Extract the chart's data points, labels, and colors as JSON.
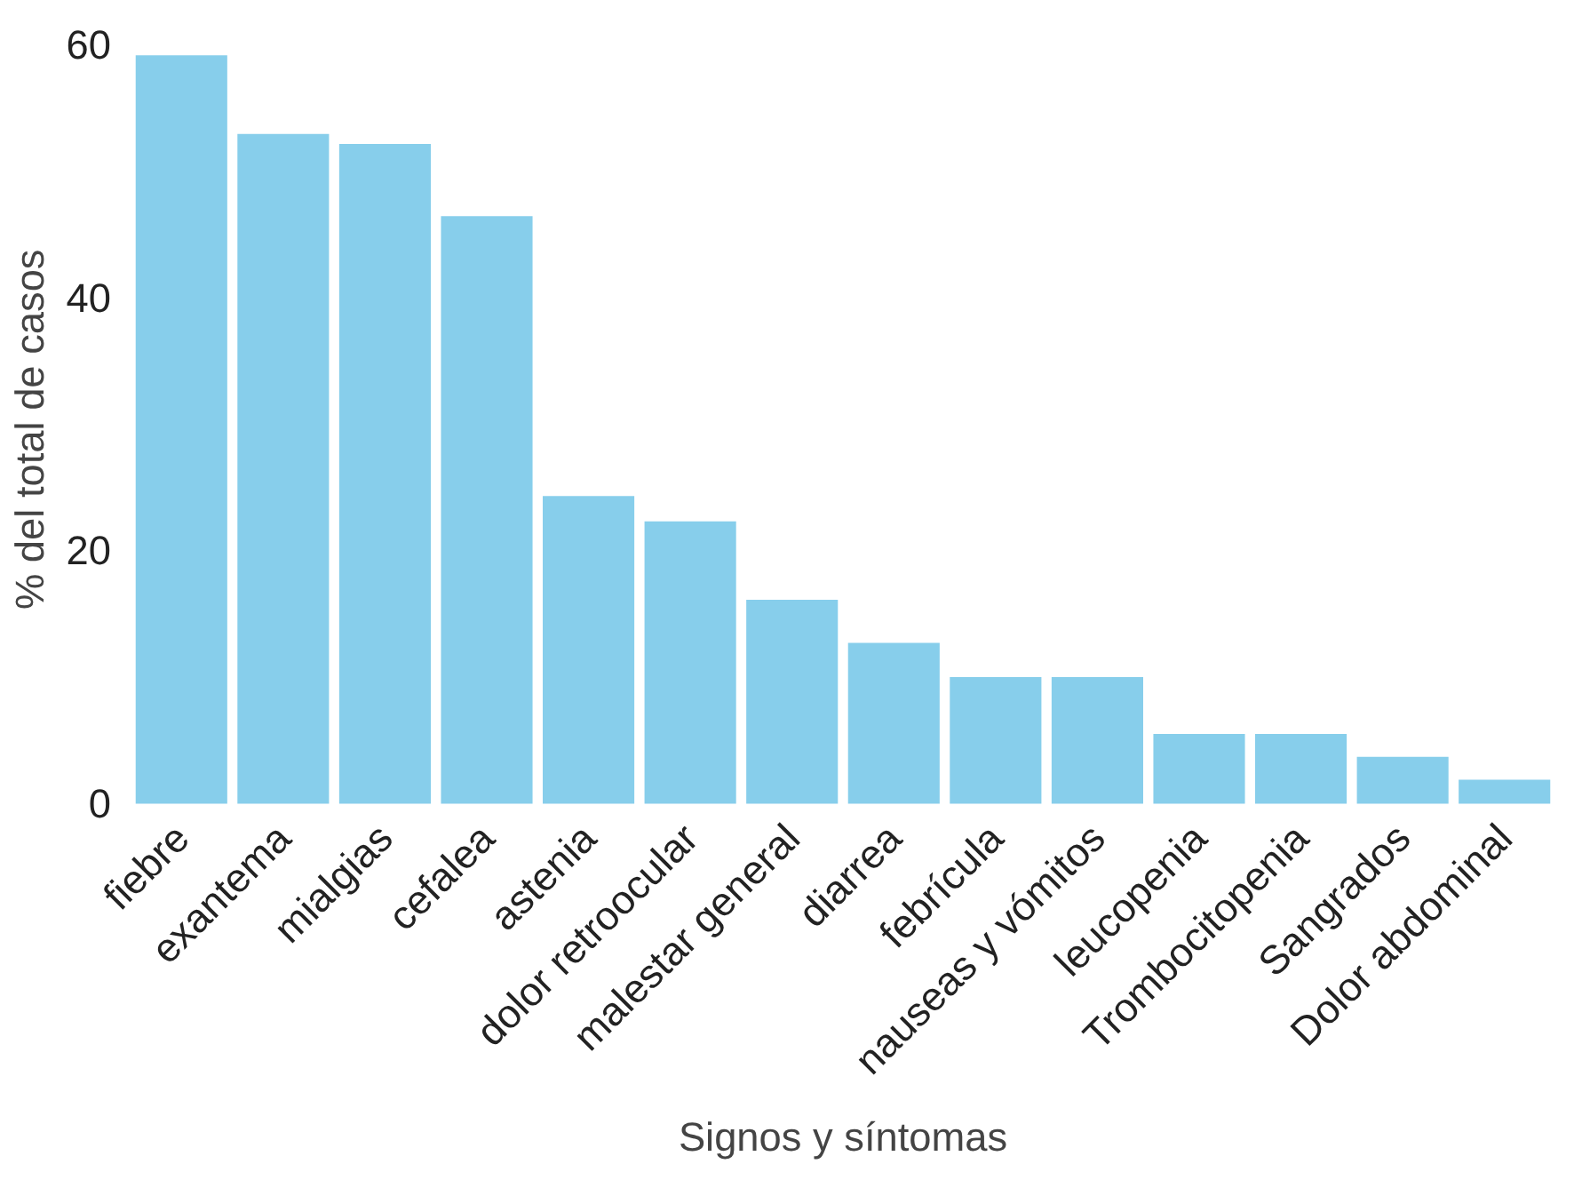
{
  "chart_data": {
    "type": "bar",
    "xlabel": "Signos y síntomas",
    "ylabel": "%  del total de casos",
    "categories": [
      "fiebre",
      "exantema",
      "mialgias",
      "cefalea",
      "astenia",
      "dolor retroocular",
      "malestar general",
      "diarrea",
      "febrícula",
      "nauseas y vómitos",
      "leucopenia",
      "Trombocitopenia",
      "Sangrados",
      "Dolor abdominal"
    ],
    "values": [
      59.1,
      52.9,
      52.1,
      46.4,
      24.3,
      22.3,
      16.1,
      12.7,
      10.0,
      10.0,
      5.5,
      5.5,
      3.7,
      1.9
    ],
    "color": "#87ceeb",
    "ylim": [
      0,
      60
    ],
    "yticks": [
      0,
      20,
      40,
      60
    ],
    "grid": false
  }
}
